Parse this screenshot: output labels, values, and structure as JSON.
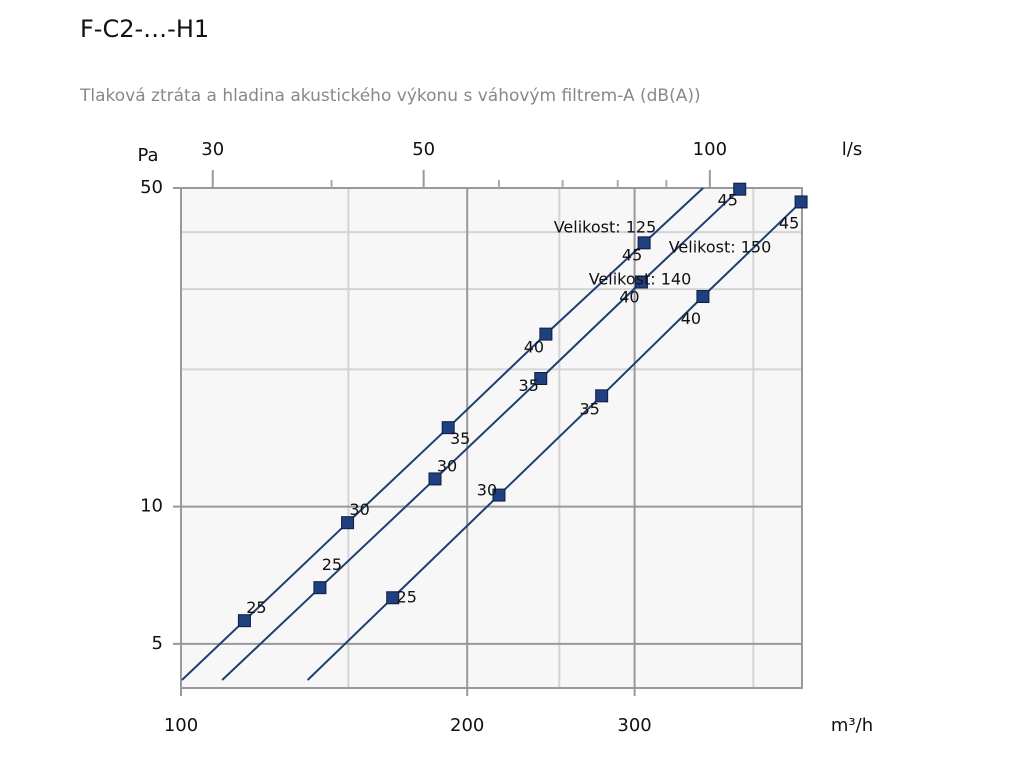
{
  "chart_data": {
    "type": "line",
    "log_scale": true,
    "title": "F-C2-…-H1",
    "subtitle": "Tlaková ztráta a hladina akustického výkonu s váhovým filtrem-A (dB(A))",
    "x_label": "m³/h",
    "y_label": "Pa",
    "x2_label": "l/s",
    "xlim": [
      100,
      450
    ],
    "xticks": [
      100,
      200,
      300
    ],
    "xminorgrid": [
      150,
      250,
      400
    ],
    "ylim": [
      4,
      50
    ],
    "yticks": [
      5,
      10,
      50
    ],
    "yminorgrid": [
      20,
      30,
      40
    ],
    "x2lim": [
      27.78,
      125
    ],
    "x2ticks": [
      30,
      50,
      100
    ],
    "x2minorticks": [
      40,
      60,
      70,
      80,
      90
    ],
    "grid": true,
    "series": [
      {
        "name": "Velikost: 125",
        "color": "#1f3f73",
        "x": [
          116.6,
          149.7,
          191,
          242,
          307
        ],
        "values": [
          5.62,
          9.22,
          14.9,
          23.9,
          37.9
        ],
        "point_labels": [
          25,
          30,
          35,
          40,
          45
        ]
      },
      {
        "name": "Velikost: 140",
        "color": "#1f3f73",
        "x": [
          140,
          185,
          239,
          305,
          387
        ],
        "values": [
          6.64,
          11.5,
          19.1,
          31.1,
          49.7
        ],
        "point_labels": [
          25,
          30,
          35,
          40,
          45
        ]
      },
      {
        "name": "Velikost: 150",
        "color": "#1f3f73",
        "x": [
          167,
          216,
          277,
          354,
          449
        ],
        "values": [
          6.31,
          10.6,
          17.5,
          28.9,
          46.6
        ],
        "point_labels": [
          25,
          30,
          35,
          40,
          45
        ]
      }
    ]
  }
}
